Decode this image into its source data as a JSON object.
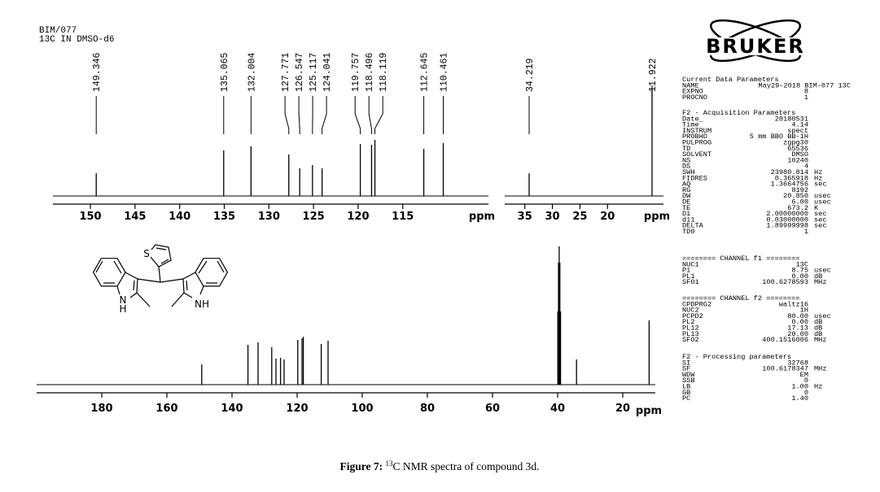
{
  "header": {
    "line1": "BIM/077",
    "line2": "13C IN DMSO-d6"
  },
  "chart_data": [
    {
      "type": "spectrum",
      "color": "#000000",
      "peak_labels": true,
      "xlabel": "ppm",
      "x": [
        149.346,
        135.065,
        132.004,
        127.771,
        126.547,
        125.117,
        124.041,
        119.757,
        118.496,
        118.119,
        112.645,
        110.461
      ],
      "values": [
        28,
        56,
        61,
        51,
        34,
        38,
        34,
        64,
        63,
        69,
        58,
        65
      ],
      "xlim": [
        154.2,
        105.4
      ],
      "xticks": [
        150,
        145,
        140,
        135,
        130,
        125,
        120,
        115
      ]
    },
    {
      "type": "spectrum",
      "color": "#000000",
      "peak_labels": true,
      "xlabel": "ppm",
      "x": [
        34.219,
        11.922
      ],
      "values": [
        28,
        133
      ],
      "xlim": [
        38.65,
        9.85
      ],
      "xticks": [
        35,
        30,
        25,
        20
      ]
    },
    {
      "type": "spectrum",
      "color": "#000000",
      "peak_labels": false,
      "xlabel": "ppm",
      "x": [
        149.3,
        135.1,
        132.0,
        127.8,
        126.5,
        125.1,
        124.0,
        119.8,
        118.5,
        118.1,
        112.6,
        110.5,
        39.94,
        39.73,
        39.52,
        39.31,
        39.1,
        34.2,
        11.9
      ],
      "values": [
        25,
        49,
        52,
        46,
        32,
        33,
        31,
        55,
        57,
        59,
        50,
        54,
        90,
        150,
        170,
        150,
        90,
        31,
        79
      ],
      "xlim": [
        200,
        10
      ],
      "xticks": [
        180,
        160,
        140,
        120,
        100,
        80,
        60,
        40,
        20
      ]
    }
  ],
  "structure": {
    "sulfur": "S",
    "left_n": "N",
    "left_h": "H",
    "right_nh": "NH"
  },
  "logo": "BRUKER",
  "params": [
    {
      "title": "Current Data Parameters",
      "rows": [
        [
          "NAME",
          "May29-2018 BIM-077 13C"
        ],
        [
          "EXPNO",
          "8"
        ],
        [
          "PROCNO",
          "1"
        ]
      ]
    },
    {
      "title": "F2 - Acquisition Parameters",
      "rows": [
        [
          "Date_",
          "20180531"
        ],
        [
          "Time",
          "4.14"
        ],
        [
          "INSTRUM",
          "spect"
        ],
        [
          "PROBHD",
          "5 mm BBO BB-1H"
        ],
        [
          "PULPROG",
          "zgpg30"
        ],
        [
          "TD",
          "65536"
        ],
        [
          "SOLVENT",
          "DMSO"
        ],
        [
          "NS",
          "10240"
        ],
        [
          "DS",
          "4"
        ],
        [
          "SWH",
          "23980.814",
          "Hz"
        ],
        [
          "FIDRES",
          "0.365918",
          "Hz"
        ],
        [
          "AQ",
          "1.3664756",
          "sec"
        ],
        [
          "RG",
          "8192"
        ],
        [
          "DW",
          "20.850",
          "usec"
        ],
        [
          "DE",
          "6.00",
          "usec"
        ],
        [
          "TE",
          "673.2",
          "K"
        ],
        [
          "D1",
          "2.00000000",
          "sec"
        ],
        [
          "d11",
          "0.03000000",
          "sec"
        ],
        [
          "DELTA",
          "1.89999998",
          "sec"
        ],
        [
          "TD0",
          "1"
        ]
      ]
    },
    {
      "title": "======== CHANNEL f1 ========",
      "rows": [
        [
          "NUC1",
          "13C"
        ],
        [
          "P1",
          "8.75",
          "usec"
        ],
        [
          "PL1",
          "0.00",
          "dB"
        ],
        [
          "SFO1",
          "100.6278593",
          "MHz"
        ]
      ]
    },
    {
      "title": "======== CHANNEL f2 ========",
      "rows": [
        [
          "CPDPRG2",
          "waltz16"
        ],
        [
          "NUC2",
          "1H"
        ],
        [
          "PCPD2",
          "80.00",
          "usec"
        ],
        [
          "PL2",
          "0.00",
          "dB"
        ],
        [
          "PL12",
          "17.13",
          "dB"
        ],
        [
          "PL13",
          "20.00",
          "dB"
        ],
        [
          "SFO2",
          "400.1516006",
          "MHz"
        ]
      ]
    },
    {
      "title": "F2 - Processing parameters",
      "rows": [
        [
          "SI",
          "32768"
        ],
        [
          "SF",
          "100.6178347",
          "MHz"
        ],
        [
          "WDW",
          "EM"
        ],
        [
          "SSB",
          "0"
        ],
        [
          "LB",
          "1.00",
          "Hz"
        ],
        [
          "GB",
          "0"
        ],
        [
          "PC",
          "1.40"
        ]
      ]
    }
  ],
  "caption": {
    "label": "Figure 7:",
    "sup": "13",
    "text": "C NMR spectra of compound 3d."
  }
}
